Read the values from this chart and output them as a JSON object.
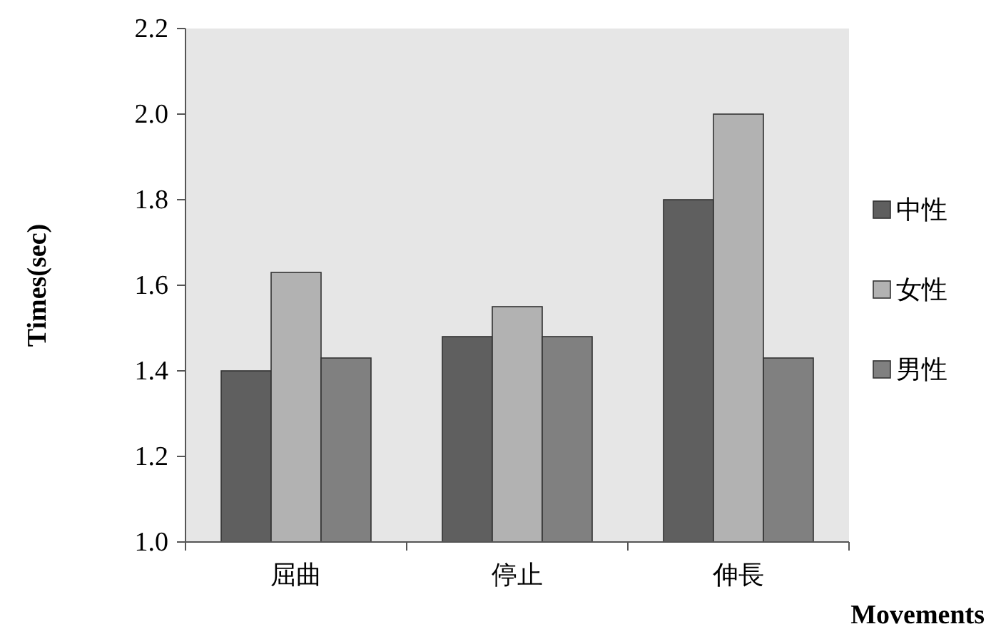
{
  "chart_data": {
    "type": "bar",
    "xlabel": "Movements",
    "ylabel": "Times(sec)",
    "categories": [
      "屈曲",
      "停止",
      "伸長"
    ],
    "series": [
      {
        "name": "中性",
        "color": "#5f5f5f",
        "values": [
          1.4,
          1.48,
          1.8
        ]
      },
      {
        "name": "女性",
        "color": "#b2b2b2",
        "values": [
          1.63,
          1.55,
          2.0
        ]
      },
      {
        "name": "男性",
        "color": "#808080",
        "values": [
          1.43,
          1.48,
          1.43
        ]
      }
    ],
    "ylim": [
      1.0,
      2.2
    ],
    "yticks": [
      {
        "value": 1.0,
        "label": "1.0"
      },
      {
        "value": 1.2,
        "label": "1.2"
      },
      {
        "value": 1.4,
        "label": "1.4"
      },
      {
        "value": 1.6,
        "label": "1.6"
      },
      {
        "value": 1.8,
        "label": "1.8"
      },
      {
        "value": 2.0,
        "label": "2.0"
      },
      {
        "value": 2.2,
        "label": "2.2"
      }
    ],
    "grid": false,
    "legend": "right"
  }
}
